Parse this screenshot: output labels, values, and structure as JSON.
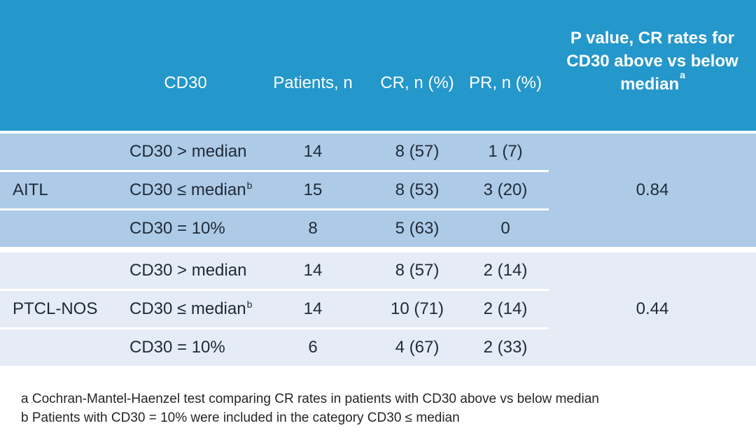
{
  "colors": {
    "header_bg": "#2497cb",
    "group1_bg": "#adcbe7",
    "group2_bg": "#e5ecf5",
    "header_text": "#ffffff",
    "body_text": "#212b38"
  },
  "table": {
    "columns": [
      "",
      "CD30",
      "Patients, n",
      "CR, n (%)",
      "PR, n (%)"
    ],
    "pvalue_header": {
      "lines": [
        "P value, CR rates for",
        "CD30 above vs below",
        "median"
      ],
      "superscript": "a"
    },
    "groups": [
      {
        "name": "AITL",
        "p_value": "0.84",
        "rows": [
          {
            "cd30": "CD30 > median",
            "sup": "",
            "patients": "14",
            "cr": "8 (57)",
            "pr": "1 (7)"
          },
          {
            "cd30": "CD30 ≤ median",
            "sup": "b",
            "patients": "15",
            "cr": "8 (53)",
            "pr": "3 (20)"
          },
          {
            "cd30": "CD30 = 10%",
            "sup": "",
            "patients": "8",
            "cr": "5 (63)",
            "pr": "0"
          }
        ]
      },
      {
        "name": "PTCL-NOS",
        "p_value": "0.44",
        "rows": [
          {
            "cd30": "CD30 > median",
            "sup": "",
            "patients": "14",
            "cr": "8 (57)",
            "pr": "2 (14)"
          },
          {
            "cd30": "CD30 ≤ median",
            "sup": "b",
            "patients": "14",
            "cr": "10 (71)",
            "pr": "2 (14)"
          },
          {
            "cd30": "CD30 = 10%",
            "sup": "",
            "patients": "6",
            "cr": "4 (67)",
            "pr": "2 (33)"
          }
        ]
      }
    ],
    "footnotes": [
      "a Cochran-Mantel-Haenzel test comparing CR rates in patients with CD30 above vs below median",
      "b Patients with CD30 = 10% were included in the category CD30 ≤ median"
    ]
  },
  "chart_data": {
    "type": "table",
    "columns": [
      "Group",
      "CD30",
      "Patients, n",
      "CR, n (%)",
      "PR, n (%)",
      "P value, CR rates for CD30 above vs below median"
    ],
    "rows": [
      [
        "AITL",
        "CD30 > median",
        "14",
        "8 (57)",
        "1 (7)",
        "0.84"
      ],
      [
        "AITL",
        "CD30 ≤ median",
        "15",
        "8 (53)",
        "3 (20)",
        "0.84"
      ],
      [
        "AITL",
        "CD30 = 10%",
        "8",
        "5 (63)",
        "0",
        "0.84"
      ],
      [
        "PTCL-NOS",
        "CD30 > median",
        "14",
        "8 (57)",
        "2 (14)",
        "0.44"
      ],
      [
        "PTCL-NOS",
        "CD30 ≤ median",
        "14",
        "10 (71)",
        "2 (14)",
        "0.44"
      ],
      [
        "PTCL-NOS",
        "CD30 = 10%",
        "6",
        "4 (67)",
        "2 (33)",
        "0.44"
      ]
    ]
  }
}
